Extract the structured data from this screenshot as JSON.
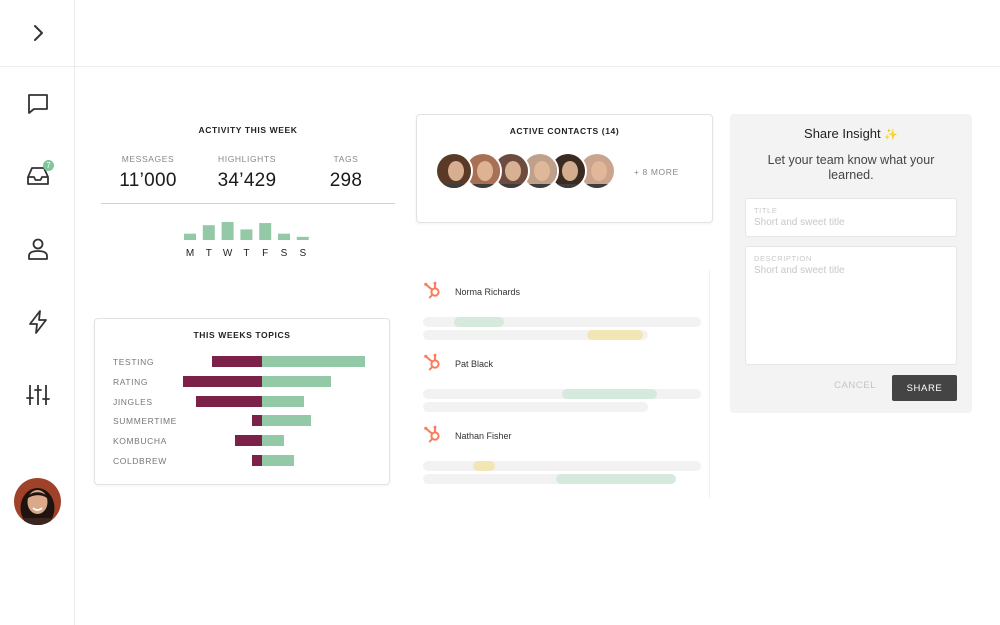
{
  "sidebar": {
    "toggle_icon": "chevron-right-icon",
    "items": [
      {
        "name": "messages",
        "icon": "chat-bubble-icon"
      },
      {
        "name": "inbox",
        "icon": "inbox-tray-icon",
        "badge": "7"
      },
      {
        "name": "contacts",
        "icon": "person-icon"
      },
      {
        "name": "integrations",
        "icon": "lightning-icon"
      },
      {
        "name": "settings",
        "icon": "sliders-icon"
      }
    ],
    "user_avatar": "user-avatar"
  },
  "activity": {
    "title": "ACTIVITY THIS WEEK",
    "stats": [
      {
        "label": "MESSAGES",
        "value": "11’000"
      },
      {
        "label": "HIGHLIGHTS",
        "value": "34’429"
      },
      {
        "label": "TAGS",
        "value": "298"
      }
    ],
    "chart_data": {
      "type": "bar",
      "categories": [
        "M",
        "T",
        "W",
        "T",
        "F",
        "S",
        "S"
      ],
      "values": [
        3,
        7,
        8.5,
        5,
        8,
        3,
        1.5
      ],
      "color": "#93c9a7"
    }
  },
  "topics": {
    "title": "THIS WEEKS TOPICS",
    "chart_data": {
      "type": "bar",
      "categories": [
        "TESTING",
        "RATING",
        "JINGLES",
        "SUMMERTIME",
        "KOMBUCHA",
        "COLDBREW"
      ],
      "series": [
        {
          "values": [
            -50,
            -79,
            -66,
            -10,
            -27,
            -10
          ],
          "color": "#7c2249"
        },
        {
          "values": [
            103,
            69,
            42,
            49,
            22,
            32
          ],
          "color": "#93c9a7"
        }
      ]
    }
  },
  "contacts": {
    "title": "ACTIVE CONTACTS (14)",
    "more_label": "+ 8 MORE",
    "avatar_colors": [
      "#5a3a26",
      "#a87055",
      "#6d4c3f",
      "#bfa08a",
      "#3a2a22",
      "#caa48c"
    ]
  },
  "feed": {
    "items": [
      {
        "name": "Norma Richards",
        "icon": "hubspot-icon",
        "highlights": [
          {
            "start": 0.11,
            "width": 0.18,
            "color": "#d5eadd"
          },
          {
            "start": 0.59,
            "width": 0.2,
            "color": "#f2e6b5"
          }
        ]
      },
      {
        "name": "Pat Black",
        "icon": "hubspot-icon",
        "highlights": [
          {
            "start": 0.5,
            "width": 0.34,
            "color": "#d5eadd"
          }
        ]
      },
      {
        "name": "Nathan Fisher",
        "icon": "hubspot-icon",
        "highlights": [
          {
            "start": 0.18,
            "width": 0.08,
            "color": "#f2e6b5"
          },
          {
            "start": 0.48,
            "width": 0.43,
            "color": "#d5eadd"
          }
        ]
      }
    ]
  },
  "share": {
    "title": "Share Insight",
    "sparkle": "✨",
    "subtitle": "Let your team know what your learned.",
    "title_field": {
      "label": "TITLE",
      "placeholder": "Short and sweet title",
      "value": ""
    },
    "description_field": {
      "label": "DESCRIPTION",
      "placeholder": "Short and sweet title",
      "value": ""
    },
    "cancel_label": "CANCEL",
    "share_label": "SHARE"
  }
}
